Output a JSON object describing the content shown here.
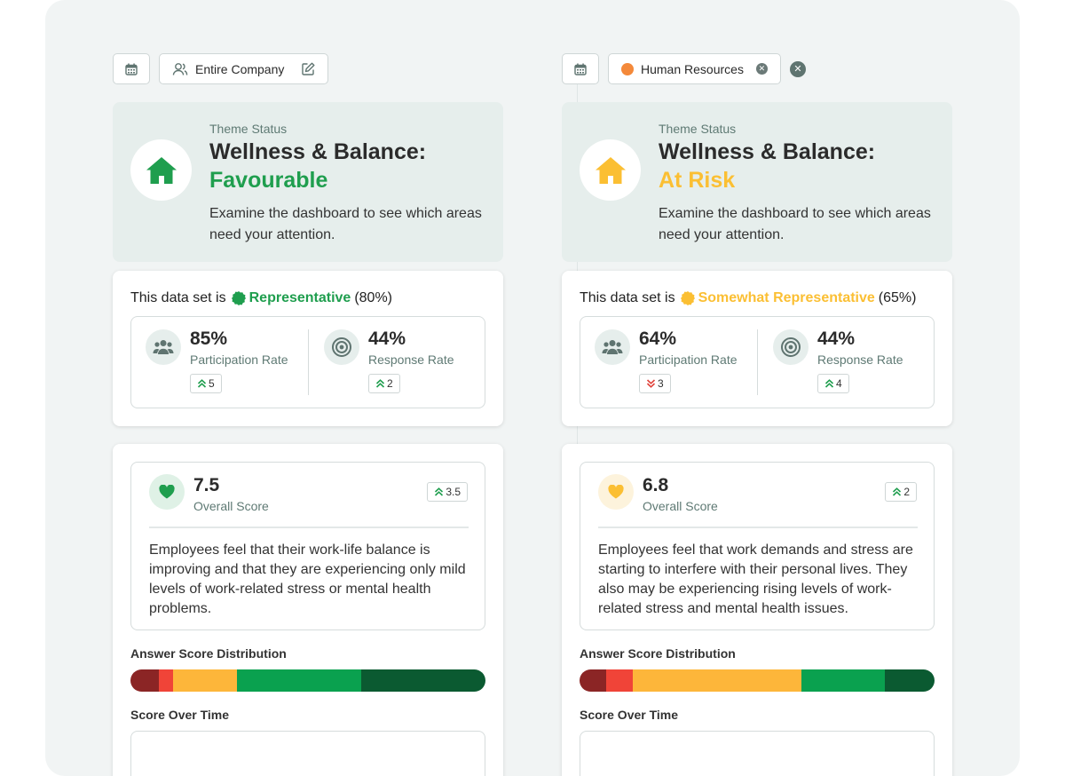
{
  "colors": {
    "favourable": "#1f9e4e",
    "at_risk": "#fbbf33",
    "dist": [
      "#8b2525",
      "#f04438",
      "#fdb63a",
      "#0aa14f",
      "#0b5a31"
    ]
  },
  "left": {
    "filter": {
      "calendar_icon": "calendar-icon",
      "chip_icon": "people-icon",
      "chip_label": "Entire Company",
      "edit_icon": "edit-icon"
    },
    "status": {
      "label": "Theme Status",
      "title": "Wellness & Balance:",
      "value": "Favourable",
      "value_color": "#1f9e4e",
      "description": "Examine the dashboard to see which areas need your attention."
    },
    "dataset": {
      "prefix": "This data set is",
      "badge": "Representative",
      "badge_color": "#1f9e4e",
      "suffix": "(80%)",
      "participation": {
        "value": "85%",
        "label": "Participation Rate",
        "trend": "5",
        "trend_direction": "up"
      },
      "response": {
        "value": "44%",
        "label": "Response Rate",
        "trend": "2",
        "trend_direction": "up"
      }
    },
    "score": {
      "value": "7.5",
      "label": "Overall Score",
      "trend": "3.5",
      "trend_direction": "up",
      "description": "Employees feel that their work-life balance is improving and that they are experiencing only mild levels of work-related stress or mental health problems.",
      "distribution_title": "Answer Score Distribution",
      "distribution": [
        0.08,
        0.04,
        0.18,
        0.35,
        0.35
      ],
      "time_title": "Score Over Time"
    }
  },
  "right": {
    "filter": {
      "calendar_icon": "calendar-icon",
      "chip_label": "Human Resources",
      "remove_icon": "close-icon",
      "clear_icon": "close-icon"
    },
    "status": {
      "label": "Theme Status",
      "title": "Wellness & Balance:",
      "value": "At Risk",
      "value_color": "#fbbf33",
      "description": "Examine the dashboard to see which areas need your attention."
    },
    "dataset": {
      "prefix": "This data set is",
      "badge": "Somewhat Representative",
      "badge_color": "#fbbf33",
      "suffix": "(65%)",
      "participation": {
        "value": "64%",
        "label": "Participation Rate",
        "trend": "3",
        "trend_direction": "down"
      },
      "response": {
        "value": "44%",
        "label": "Response Rate",
        "trend": "4",
        "trend_direction": "up"
      }
    },
    "score": {
      "value": "6.8",
      "label": "Overall Score",
      "trend": "2",
      "trend_direction": "up",
      "description": "Employees feel that work demands and stress are starting to interfere with their personal lives. They also may be experiencing rising levels of work-related stress and mental health issues.",
      "distribution_title": "Answer Score Distribution",
      "distribution": [
        0.075,
        0.075,
        0.475,
        0.235,
        0.14
      ],
      "time_title": "Score Over Time"
    }
  }
}
